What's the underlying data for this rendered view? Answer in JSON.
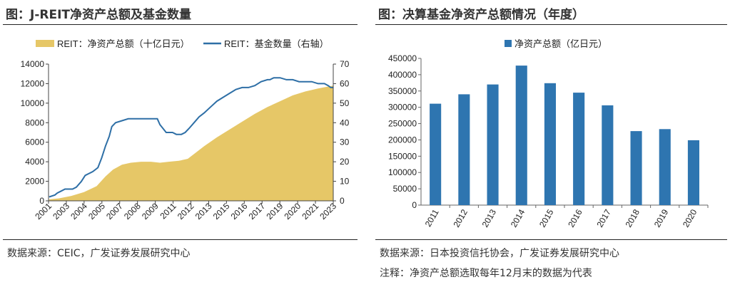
{
  "left": {
    "title": "图：J-REIT净资产总额及基金数量",
    "source": "数据来源：CEIC，广发证券发展研究中心",
    "chart_data": {
      "type": "area+line",
      "legend": [
        {
          "name": "REIT：净资产总额（十亿日元）",
          "type": "area",
          "color": "#E6C767"
        },
        {
          "name": "REIT：基金数量（右轴）",
          "type": "line",
          "color": "#2E6FA6"
        }
      ],
      "legend_position": "top",
      "xticks": [
        "2001",
        "2003",
        "2004",
        "2005",
        "2007",
        "2008",
        "2009",
        "2011",
        "2012",
        "2013",
        "2015",
        "2016",
        "2017",
        "2019",
        "2020",
        "2021",
        "2023"
      ],
      "yticks_left": [
        "0",
        "2000",
        "4000",
        "6000",
        "8000",
        "10000",
        "12000",
        "14000"
      ],
      "yticks_right": [
        "0",
        "10",
        "20",
        "30",
        "40",
        "50",
        "60",
        "70"
      ],
      "ylim_left": [
        0,
        14000
      ],
      "ylim_right": [
        0,
        70
      ],
      "xlim": [
        2001.7,
        2024.2
      ],
      "net_assets": {
        "x": [
          2001.75,
          2002.5,
          2003.5,
          2004.5,
          2005.5,
          2006.2,
          2006.8,
          2007.5,
          2008.2,
          2009.0,
          2009.8,
          2010.5,
          2011.2,
          2012.0,
          2012.7,
          2013.2,
          2014.0,
          2015.0,
          2016.0,
          2017.0,
          2018.0,
          2019.0,
          2020.0,
          2021.0,
          2022.0,
          2023.0,
          2023.8,
          2024.2
        ],
        "y": [
          150,
          250,
          500,
          900,
          1500,
          2500,
          3200,
          3700,
          3900,
          4000,
          4000,
          3900,
          4000,
          4100,
          4300,
          4800,
          5600,
          6500,
          7300,
          8100,
          8900,
          9600,
          10200,
          10800,
          11200,
          11500,
          11700,
          11800
        ]
      },
      "fund_count": {
        "x": [
          2001.75,
          2002.2,
          2002.4,
          2002.7,
          2003.0,
          2003.3,
          2003.6,
          2003.9,
          2004.3,
          2004.6,
          2004.9,
          2005.2,
          2005.6,
          2005.9,
          2006.2,
          2006.5,
          2006.7,
          2007.0,
          2007.5,
          2008.0,
          2008.5,
          2009.0,
          2009.5,
          2010.0,
          2010.3,
          2010.5,
          2011.0,
          2011.5,
          2011.8,
          2012.2,
          2012.5,
          2012.8,
          2013.2,
          2013.6,
          2014.0,
          2014.5,
          2015.0,
          2015.5,
          2016.0,
          2016.5,
          2017.0,
          2017.5,
          2018.0,
          2018.5,
          2019.0,
          2019.2,
          2019.5,
          2019.8,
          2020.0,
          2020.5,
          2021.0,
          2021.5,
          2022.0,
          2022.5,
          2023.0,
          2023.5,
          2023.8,
          2024.0,
          2024.2
        ],
        "y": [
          2,
          3,
          4,
          5,
          6,
          6,
          6,
          7,
          10,
          13,
          14,
          15,
          17,
          22,
          28,
          33,
          38,
          40,
          41,
          42,
          42,
          42,
          42,
          42,
          42,
          39,
          35,
          35,
          34,
          34,
          35,
          37,
          40,
          43,
          45,
          48,
          51,
          53,
          55,
          57,
          58,
          58,
          59,
          61,
          62,
          62,
          63,
          63,
          63,
          62,
          62,
          61,
          61,
          61,
          60,
          60,
          59,
          58,
          58
        ]
      }
    }
  },
  "right": {
    "title": "图：决算基金净资产总额情况（年度）",
    "source": "数据来源：日本投资信托协会，广发证券发展研究中心",
    "note": "注释：净资产总额选取每年12月末的数据为代表",
    "chart_data": {
      "type": "bar",
      "legend": [
        {
          "name": "净资产总额（亿日元）",
          "color": "#2E75B0"
        }
      ],
      "legend_position": "top",
      "categories": [
        "2011",
        "2012",
        "2013",
        "2014",
        "2015",
        "2016",
        "2017",
        "2018",
        "2019",
        "2020"
      ],
      "values": [
        311000,
        340000,
        370000,
        428000,
        374000,
        345000,
        306000,
        227000,
        233000,
        199000
      ],
      "yticks": [
        "0",
        "50000",
        "100000",
        "150000",
        "200000",
        "250000",
        "300000",
        "350000",
        "400000",
        "450000"
      ],
      "ylim": [
        0,
        450000
      ],
      "bar_color": "#2E75B0"
    }
  }
}
